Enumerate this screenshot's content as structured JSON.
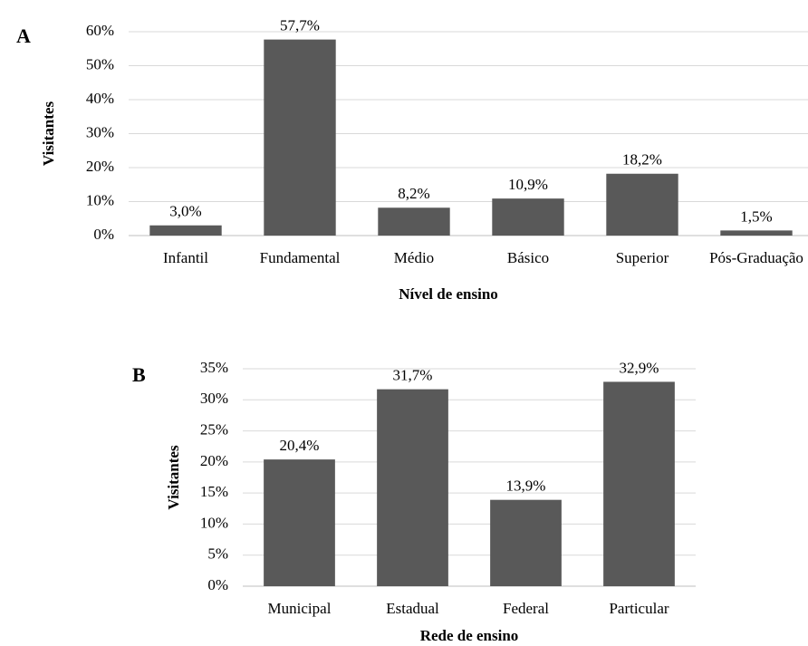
{
  "chart_data": [
    {
      "type": "bar",
      "panel_label": "A",
      "ylabel": "Visitantes",
      "xlabel": "Nível de ensino",
      "categories": [
        "Infantil",
        "Fundamental",
        "Médio",
        "Básico",
        "Superior",
        "Pós-Graduação"
      ],
      "values": [
        3.0,
        57.7,
        8.2,
        10.9,
        18.2,
        1.5
      ],
      "value_labels": [
        "3,0%",
        "57,7%",
        "8,2%",
        "10,9%",
        "18,2%",
        "1,5%"
      ],
      "color": "#595959",
      "grid": true,
      "ylim": [
        0,
        60
      ],
      "yticks": [
        {
          "value": 0,
          "label": "0%"
        },
        {
          "value": 10,
          "label": "10%"
        },
        {
          "value": 20,
          "label": "20%"
        },
        {
          "value": 30,
          "label": "30%"
        },
        {
          "value": 40,
          "label": "40%"
        },
        {
          "value": 50,
          "label": "50%"
        },
        {
          "value": 60,
          "label": "60%"
        }
      ]
    },
    {
      "type": "bar",
      "panel_label": "B",
      "ylabel": "Visitantes",
      "xlabel": "Rede de ensino",
      "categories": [
        "Municipal",
        "Estadual",
        "Federal",
        "Particular"
      ],
      "values": [
        20.4,
        31.7,
        13.9,
        32.9
      ],
      "value_labels": [
        "20,4%",
        "31,7%",
        "13,9%",
        "32,9%"
      ],
      "color": "#595959",
      "grid": true,
      "ylim": [
        0,
        35
      ],
      "yticks": [
        {
          "value": 0,
          "label": "0%"
        },
        {
          "value": 5,
          "label": "5%"
        },
        {
          "value": 10,
          "label": "10%"
        },
        {
          "value": 15,
          "label": "15%"
        },
        {
          "value": 20,
          "label": "20%"
        },
        {
          "value": 25,
          "label": "25%"
        },
        {
          "value": 30,
          "label": "30%"
        },
        {
          "value": 35,
          "label": "35%"
        }
      ]
    }
  ]
}
